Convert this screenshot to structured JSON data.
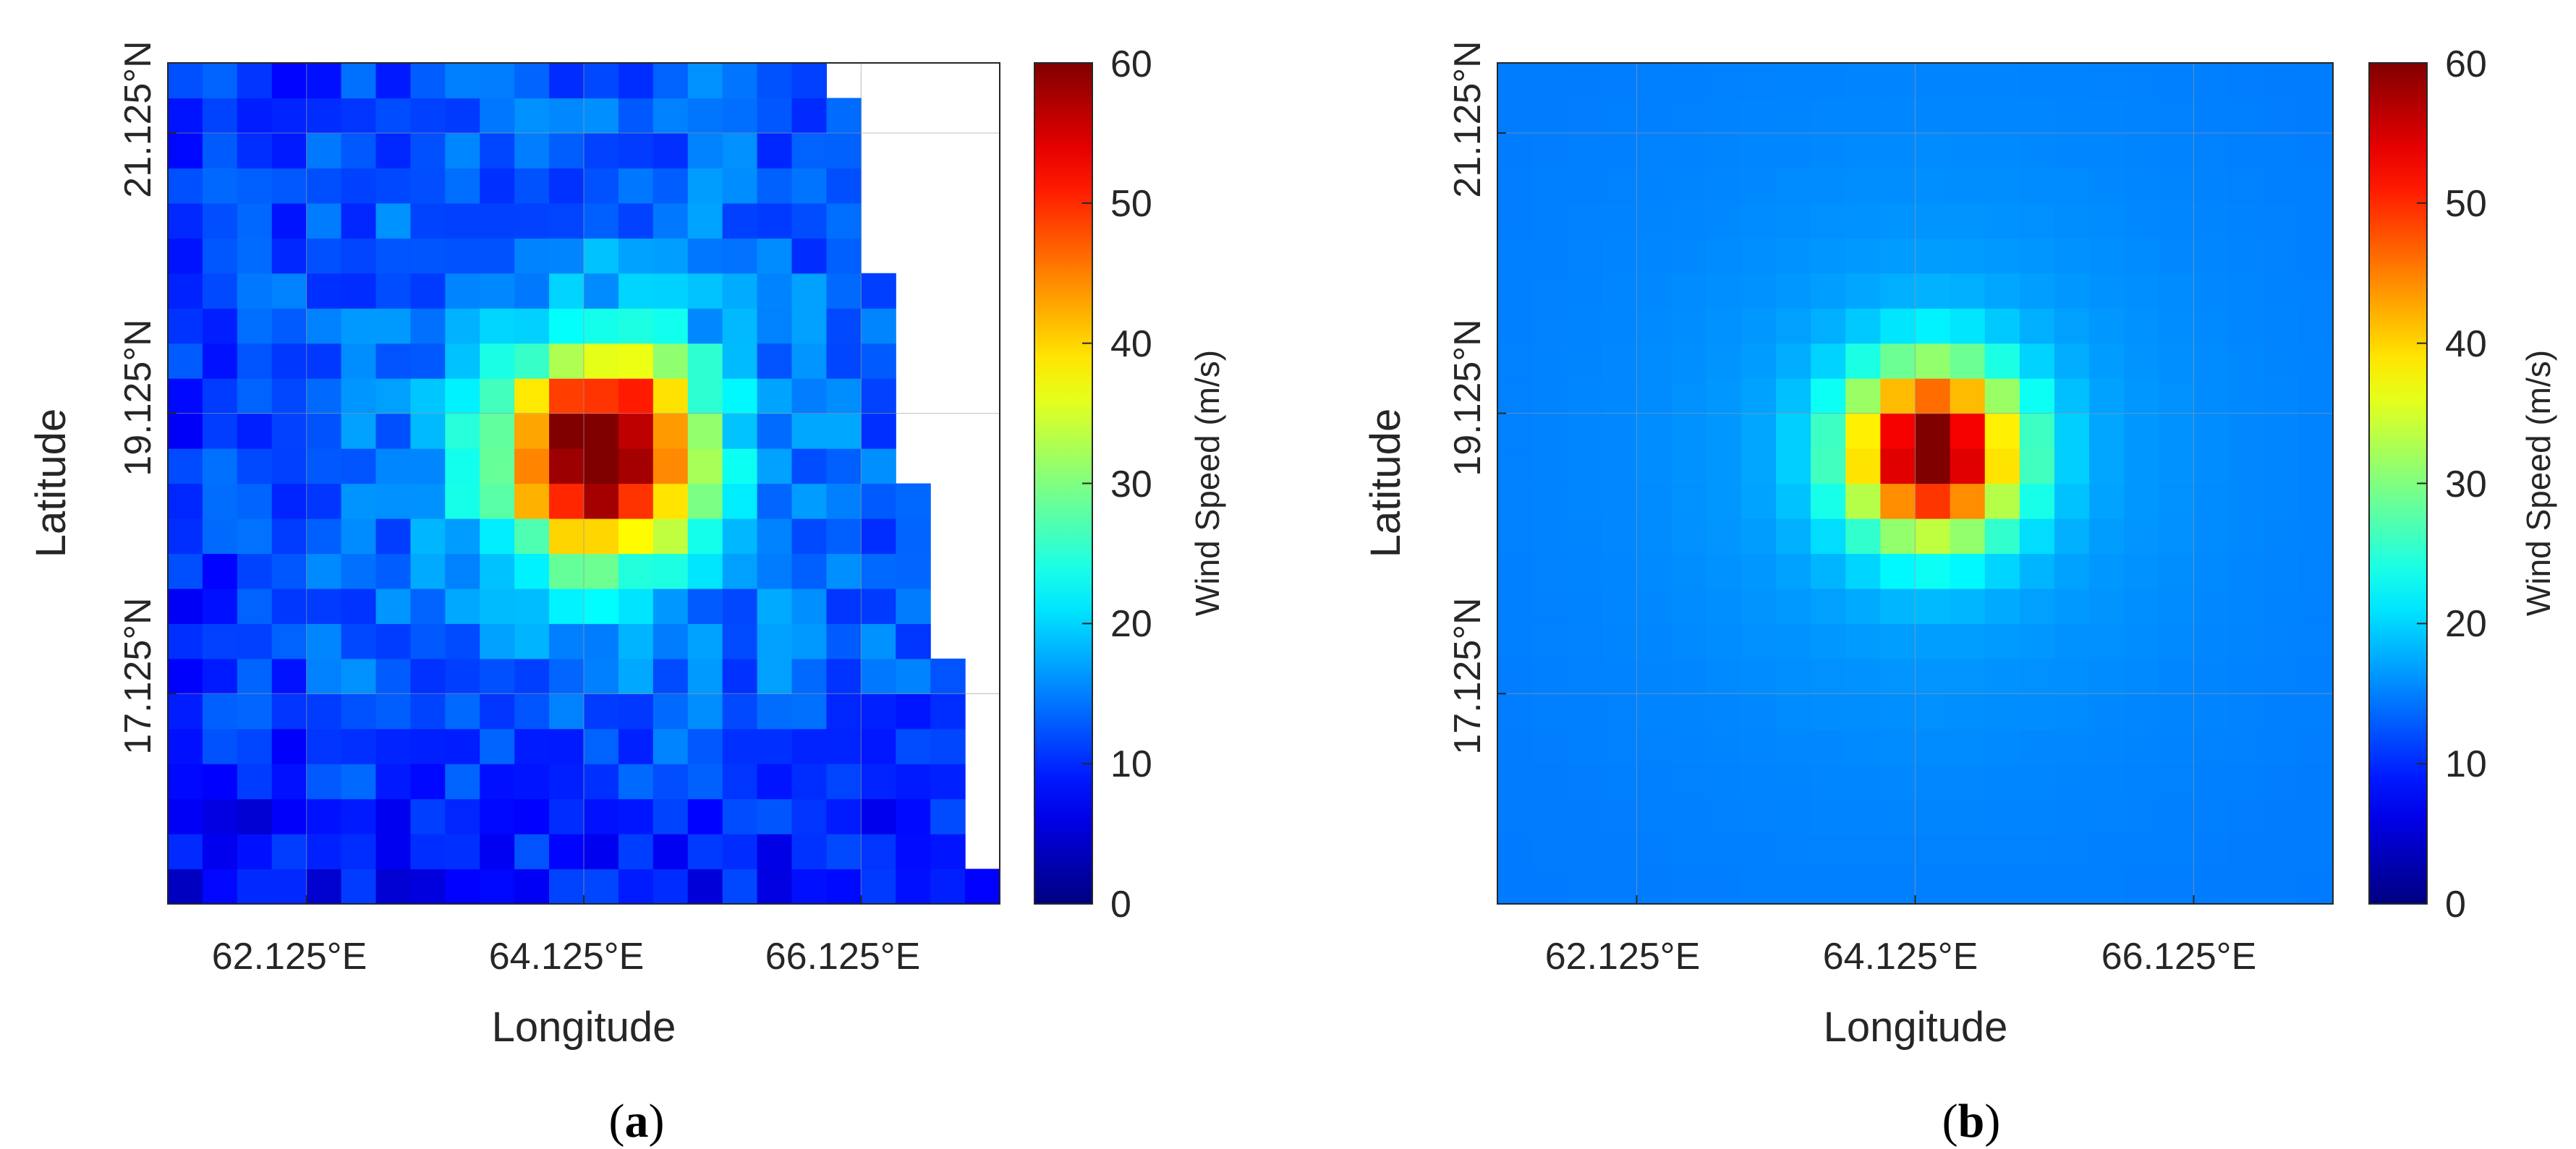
{
  "chart_data": [
    {
      "type": "heatmap",
      "panel_label": "a",
      "xlabel": "Longitude",
      "ylabel": "Latitude",
      "x_tick_labels": [
        "62.125°E",
        "64.125°E",
        "66.125°E"
      ],
      "x_tick_values": [
        62.125,
        64.125,
        66.125
      ],
      "y_tick_labels": [
        "17.125°N",
        "19.125°N",
        "21.125°N"
      ],
      "y_tick_values": [
        17.125,
        19.125,
        21.125
      ],
      "xlim": [
        61.125,
        67.125
      ],
      "ylim": [
        15.625,
        21.625
      ],
      "grid": true,
      "field": "observed",
      "cell_size_deg": 0.25,
      "land_mask": "no-data (white) cells along the east/north-east edge",
      "peak_wind_speed": 58,
      "colorbar": {
        "label": "Wind Speed (m/s)",
        "min": 0,
        "max": 60,
        "ticks": [
          "0",
          "10",
          "20",
          "30",
          "40",
          "50",
          "60"
        ],
        "colormap": "jet"
      }
    },
    {
      "type": "heatmap",
      "panel_label": "b",
      "xlabel": "Longitude",
      "ylabel": "Latitude",
      "x_tick_labels": [
        "62.125°E",
        "64.125°E",
        "66.125°E"
      ],
      "x_tick_values": [
        62.125,
        64.125,
        66.125
      ],
      "y_tick_labels": [
        "17.125°N",
        "19.125°N",
        "21.125°N"
      ],
      "y_tick_values": [
        17.125,
        19.125,
        21.125
      ],
      "xlim": [
        61.125,
        67.125
      ],
      "ylim": [
        15.625,
        21.625
      ],
      "grid": true,
      "field": "modeled",
      "cell_size_deg": 0.25,
      "peak_wind_speed": 55,
      "colorbar": {
        "label": "Wind Speed (m/s)",
        "min": 0,
        "max": 60,
        "ticks": [
          "0",
          "10",
          "20",
          "30",
          "40",
          "50",
          "60"
        ],
        "colormap": "jet"
      }
    }
  ]
}
